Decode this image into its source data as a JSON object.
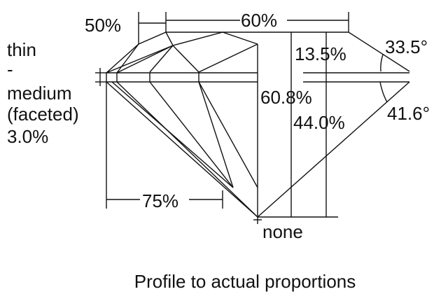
{
  "labels": {
    "crown_height_pct": "50%",
    "table_pct": "60%",
    "girdle_line1": "thin",
    "girdle_line2": "-",
    "girdle_line3": "medium",
    "girdle_line4": "(faceted)",
    "girdle_line5": "3.0%",
    "crown_depth_pct": "13.5%",
    "crown_angle": "33.5°",
    "total_depth_pct": "60.8%",
    "pavilion_depth_pct": "44.0%",
    "pavilion_angle": "41.6°",
    "lower_half_pct": "75%",
    "culet": "none"
  },
  "caption": "Profile to actual proportions"
}
